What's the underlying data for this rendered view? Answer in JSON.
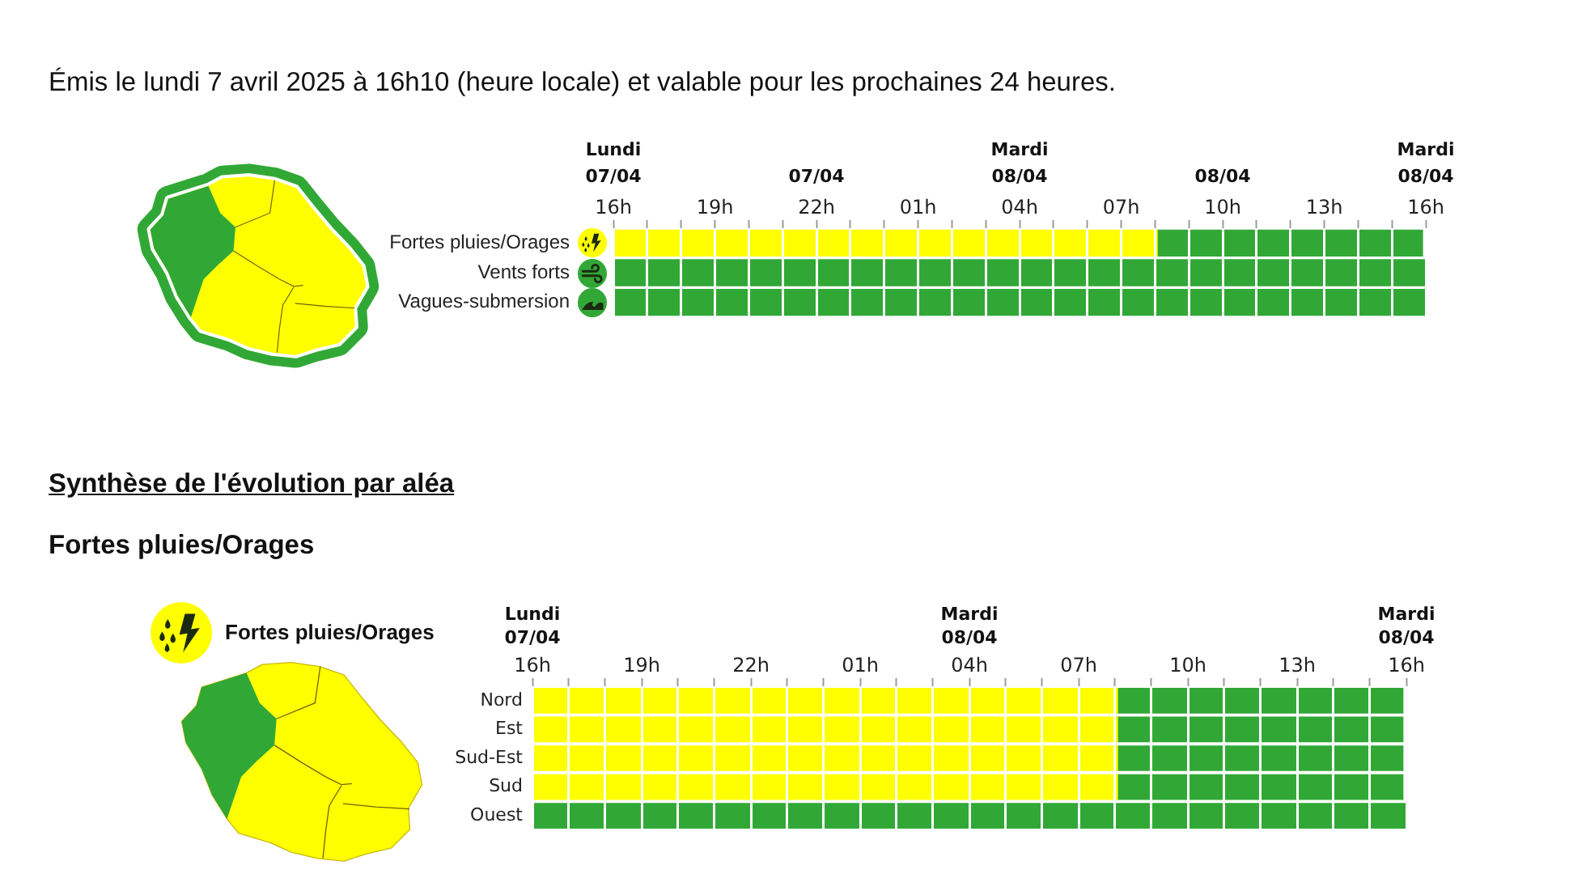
{
  "chart_data": [
    {
      "type": "bar",
      "title": "Émis le lundi 7 avril 2025 à 16h10 (heure locale) et valable pour les prochaines 24 heures.",
      "orientation": "horizontal",
      "categories": [
        "Fortes pluies/Orages",
        "Vents forts",
        "Vagues-submersion"
      ],
      "series": [
        {
          "color": "#ffff00",
          "values": [
            0.67,
            null,
            null
          ],
          "base": [
            20185.6667,
            null,
            null
          ]
        },
        {
          "color": "#31a836",
          "values": [
            0.33,
            1,
            1
          ],
          "base": [
            20186.3333,
            20185.6667,
            20185.6667
          ]
        }
      ],
      "xlim": [
        "2025-04-07T16:00",
        "2025-04-08T16:00"
      ],
      "xticks": [
        {
          "value": "2025-04-07T16:00",
          "label": "16h"
        },
        {
          "value": "2025-04-07T17:00",
          "label": null
        },
        {
          "value": "2025-04-07T18:00",
          "label": null
        },
        {
          "value": "2025-04-07T19:00",
          "label": "19h"
        },
        {
          "value": "2025-04-07T20:00",
          "label": null
        },
        {
          "value": "2025-04-07T21:00",
          "label": null
        },
        {
          "value": "2025-04-07T22:00",
          "label": "22h"
        },
        {
          "value": "2025-04-07T23:00",
          "label": null
        },
        {
          "value": "2025-04-08T00:00",
          "label": null
        },
        {
          "value": "2025-04-08T01:00",
          "label": "01h"
        },
        {
          "value": "2025-04-08T02:00",
          "label": null
        },
        {
          "value": "2025-04-08T03:00",
          "label": null
        },
        {
          "value": "2025-04-08T04:00",
          "label": "04h"
        },
        {
          "value": "2025-04-08T05:00",
          "label": null
        },
        {
          "value": "2025-04-08T06:00",
          "label": null
        },
        {
          "value": "2025-04-08T07:00",
          "label": "07h"
        },
        {
          "value": "2025-04-08T08:00",
          "label": null
        },
        {
          "value": "2025-04-08T09:00",
          "label": null
        },
        {
          "value": "2025-04-08T10:00",
          "label": "10h"
        },
        {
          "value": "2025-04-08T11:00",
          "label": null
        },
        {
          "value": "2025-04-08T12:00",
          "label": null
        },
        {
          "value": "2025-04-08T13:00",
          "label": "13h"
        },
        {
          "value": "2025-04-08T14:00",
          "label": null
        },
        {
          "value": "2025-04-08T15:00",
          "label": null
        },
        {
          "value": "2025-04-08T16:00",
          "label": "16h"
        }
      ],
      "x2lim": [
        "2025-04-07T16:00",
        "2025-04-08T16:00"
      ],
      "x2ticks": [
        {
          "value": "2025-04-07T16:00",
          "label": "07/04"
        },
        {
          "value": "2025-04-07T22:00",
          "label": "07/04"
        },
        {
          "value": "2025-04-08T04:00",
          "label": "08/04"
        },
        {
          "value": "2025-04-08T10:00",
          "label": "08/04"
        },
        {
          "value": "2025-04-08T16:00",
          "label": "08/04"
        }
      ],
      "annotations": [
        "Lundi",
        "Mardi",
        "Mardi"
      ],
      "grid": "x"
    },
    {
      "type": "bar",
      "title": "Synthèse de l'évolution par aléa",
      "subtitle": "Fortes pluies/Orages",
      "annotations": [
        "Fortes pluies/Orages",
        "Lundi",
        "Mardi",
        "Mardi"
      ],
      "orientation": "horizontal",
      "categories": [
        "Nord",
        "Est",
        "Sud-Est",
        "Sud",
        "Ouest"
      ],
      "series": [
        {
          "color": "#ffff00",
          "values": [
            0.67,
            0.67,
            0.67,
            0.67,
            null
          ],
          "base": [
            20185.6667,
            20185.6667,
            20185.6667,
            20185.6667,
            null
          ]
        },
        {
          "color": "#31a836",
          "values": [
            0.33,
            0.33,
            0.33,
            0.33,
            1
          ],
          "base": [
            20186.3333,
            20186.3333,
            20186.3333,
            20186.3333,
            20185.6667
          ]
        }
      ],
      "xlim": [
        "2025-04-07T16:00",
        "2025-04-08T16:00"
      ],
      "xticks": [
        {
          "value": "2025-04-07T16:00",
          "label": "16h"
        },
        {
          "value": "2025-04-07T17:00",
          "label": null
        },
        {
          "value": "2025-04-07T18:00",
          "label": null
        },
        {
          "value": "2025-04-07T19:00",
          "label": "19h"
        },
        {
          "value": "2025-04-07T20:00",
          "label": null
        },
        {
          "value": "2025-04-07T21:00",
          "label": null
        },
        {
          "value": "2025-04-07T22:00",
          "label": "22h"
        },
        {
          "value": "2025-04-07T23:00",
          "label": null
        },
        {
          "value": "2025-04-08T00:00",
          "label": null
        },
        {
          "value": "2025-04-08T01:00",
          "label": "01h"
        },
        {
          "value": "2025-04-08T02:00",
          "label": null
        },
        {
          "value": "2025-04-08T03:00",
          "label": null
        },
        {
          "value": "2025-04-08T04:00",
          "label": "04h"
        },
        {
          "value": "2025-04-08T05:00",
          "label": null
        },
        {
          "value": "2025-04-08T06:00",
          "label": null
        },
        {
          "value": "2025-04-08T07:00",
          "label": "07h"
        },
        {
          "value": "2025-04-08T08:00",
          "label": null
        },
        {
          "value": "2025-04-08T09:00",
          "label": null
        },
        {
          "value": "2025-04-08T10:00",
          "label": "10h"
        },
        {
          "value": "2025-04-08T11:00",
          "label": null
        },
        {
          "value": "2025-04-08T12:00",
          "label": null
        },
        {
          "value": "2025-04-08T13:00",
          "label": "13h"
        },
        {
          "value": "2025-04-08T14:00",
          "label": null
        },
        {
          "value": "2025-04-08T15:00",
          "label": null
        },
        {
          "value": "2025-04-08T16:00",
          "label": "16h"
        }
      ],
      "x2lim": [
        "2025-04-07T16:00",
        "2025-04-08T16:00"
      ],
      "x2ticks": [
        {
          "value": "2025-04-07T16:00",
          "label": "07/04"
        },
        {
          "value": "2025-04-08T04:00",
          "label": "08/04"
        },
        {
          "value": "2025-04-08T16:00",
          "label": "08/04"
        }
      ],
      "grid": "x"
    }
  ]
}
